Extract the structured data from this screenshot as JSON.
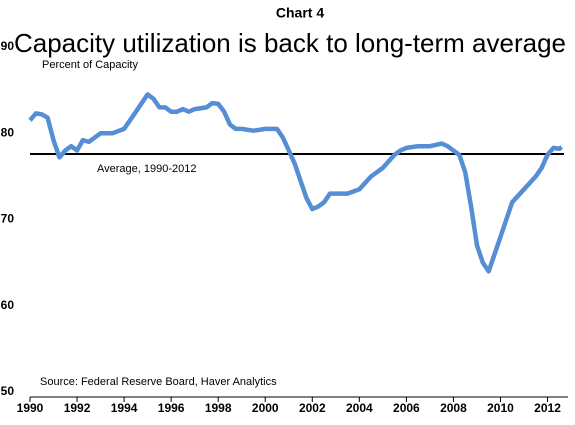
{
  "chart_data": {
    "type": "line",
    "chart_label": "Chart 4",
    "title": "Capacity utilization is back to long-term average",
    "ylabel": "Percent of Capacity",
    "source": "Source: Federal Reserve Board, Haver Analytics",
    "reference_line": {
      "value": 77.6,
      "label": "Average, 1990-2012",
      "color": "#000000"
    },
    "xlim": [
      1990,
      2012.7
    ],
    "xticks": [
      1990,
      1992,
      1994,
      1996,
      1998,
      2000,
      2002,
      2004,
      2006,
      2008,
      2010,
      2012
    ],
    "ylim": [
      50,
      90
    ],
    "yticks": [
      50,
      60,
      70,
      80,
      90
    ],
    "x": [
      1990,
      1990.25,
      1990.5,
      1990.75,
      1991,
      1991.25,
      1991.5,
      1991.75,
      1992,
      1992.25,
      1992.5,
      1992.75,
      1993,
      1993.5,
      1994,
      1994.25,
      1994.5,
      1994.75,
      1995,
      1995.25,
      1995.5,
      1995.75,
      1996,
      1996.25,
      1996.5,
      1996.75,
      1997,
      1997.5,
      1997.75,
      1998,
      1998.25,
      1998.5,
      1998.75,
      1999,
      1999.5,
      2000,
      2000.5,
      2000.75,
      2001,
      2001.25,
      2001.5,
      2001.75,
      2002,
      2002.25,
      2002.5,
      2002.75,
      2003,
      2003.5,
      2004,
      2004.5,
      2005,
      2005.5,
      2005.75,
      2006,
      2006.5,
      2007,
      2007.5,
      2007.75,
      2008,
      2008.25,
      2008.5,
      2008.75,
      2009,
      2009.25,
      2009.5,
      2009.75,
      2010,
      2010.5,
      2011,
      2011.5,
      2011.75,
      2012,
      2012.25,
      2012.5,
      2012.6
    ],
    "series": [
      {
        "name": "Capacity utilization",
        "color": "#558ed5",
        "values": [
          81.5,
          82.3,
          82.2,
          81.8,
          79.2,
          77.2,
          78.0,
          78.5,
          78.0,
          79.2,
          79.0,
          79.5,
          80.0,
          80.0,
          80.5,
          81.5,
          82.5,
          83.5,
          84.5,
          84.0,
          83.0,
          83.0,
          82.5,
          82.5,
          82.8,
          82.5,
          82.8,
          83.0,
          83.5,
          83.4,
          82.5,
          81.0,
          80.5,
          80.5,
          80.3,
          80.5,
          80.5,
          79.5,
          78.0,
          76.5,
          74.5,
          72.5,
          71.2,
          71.5,
          72.0,
          73.0,
          73.0,
          73.0,
          73.5,
          75.0,
          76.0,
          77.5,
          78.0,
          78.3,
          78.5,
          78.5,
          78.8,
          78.5,
          78.0,
          77.5,
          75.5,
          71.5,
          67.0,
          65.0,
          64.0,
          66.0,
          68.0,
          72.0,
          73.5,
          75.0,
          76.0,
          77.5,
          78.3,
          78.2,
          78.4
        ]
      }
    ]
  }
}
